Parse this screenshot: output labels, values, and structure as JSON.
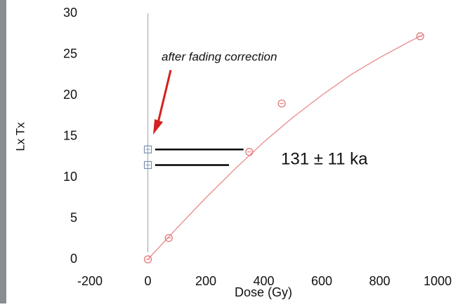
{
  "chart_data": {
    "type": "scatter",
    "xlabel": "Dose (Gy)",
    "ylabel": "Lx Tx",
    "annotation": "after fading correction",
    "age": "131 ± 11 ka",
    "xlim": [
      -200,
      1000
    ],
    "xticks": [
      -200,
      0,
      200,
      400,
      600,
      800,
      1000
    ],
    "ylim": [
      0,
      30
    ],
    "yticks": [
      0,
      5,
      10,
      15,
      20,
      25,
      30
    ],
    "series": [
      {
        "marker": "curve",
        "color": "#e88a8a",
        "x": [
          0,
          100,
          200,
          300,
          400,
          500,
          600,
          700,
          800,
          900,
          950
        ],
        "values": [
          0,
          3.8,
          7.5,
          11,
          14.3,
          17.3,
          20,
          22.5,
          24.6,
          26.5,
          27.4
        ]
      },
      {
        "marker": "circle",
        "color": "#e07070",
        "x": [
          0,
          72,
          350,
          462,
          940
        ],
        "values": [
          0,
          2.6,
          13.1,
          19.0,
          27.2
        ]
      },
      {
        "marker": "square",
        "color": "#8090b0",
        "x": [
          0,
          0
        ],
        "values": [
          13.4,
          11.5
        ]
      },
      {
        "marker": "line",
        "color": "#000000",
        "x": [
          25,
          330
        ],
        "values": [
          13.4,
          13.4
        ]
      },
      {
        "marker": "line",
        "color": "#000000",
        "x": [
          25,
          280
        ],
        "values": [
          11.5,
          11.5
        ]
      }
    ]
  }
}
